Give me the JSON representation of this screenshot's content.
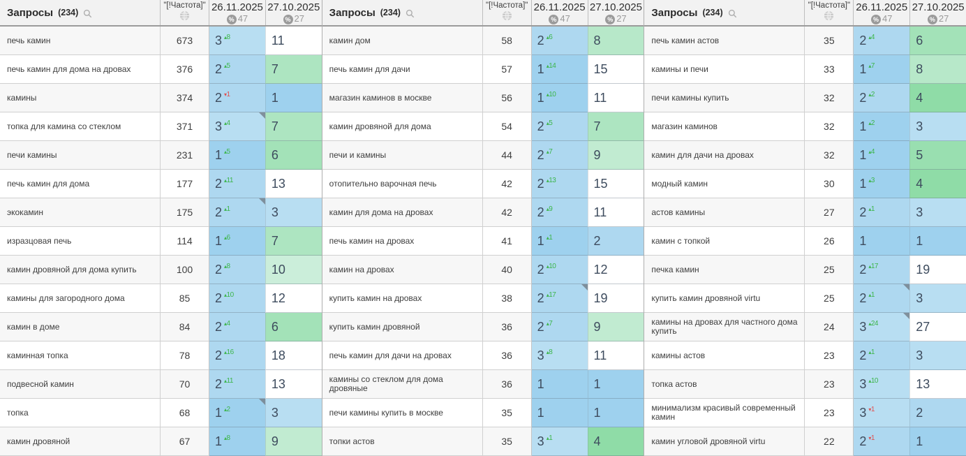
{
  "header": {
    "queries_label": "Запросы",
    "queries_count": "(234)",
    "freq_label": "\"[!Частота]\"",
    "col1": {
      "date": "26.11.2025",
      "percent": "47"
    },
    "col2": {
      "date": "27.10.2025",
      "percent": "27"
    }
  },
  "icons": {
    "search": "search-icon",
    "globe": "globe-icon",
    "percent_glyph": "%",
    "up_arrow_glyph": "▴",
    "down_arrow_glyph": "▾"
  },
  "colors": {
    "pos_top1_blue": "#9ed1ee",
    "pos_top2_blue": "#aed8f0",
    "pos_top3_blue": "#b8def2",
    "green_scale": {
      "4": "#8fdca7",
      "5": "#99dfb0",
      "6": "#a3e2b8",
      "7": "#ade5c1",
      "8": "#b7e8c9",
      "9": "#c1ebd1",
      "10": "#cbeeda"
    },
    "out_of_top10": "#ffffff",
    "change_up": "#3cb54a",
    "change_down": "#e04f4f"
  },
  "panels": [
    {
      "rows": [
        {
          "kw": "печь камин",
          "freq": "673",
          "p1": "3",
          "chg": "8",
          "dir": "up",
          "p2": "11",
          "note": false
        },
        {
          "kw": "печь камин для дома на дровах",
          "freq": "376",
          "p1": "2",
          "chg": "5",
          "dir": "up",
          "p2": "7",
          "note": false
        },
        {
          "kw": "камины",
          "freq": "374",
          "p1": "2",
          "chg": "1",
          "dir": "down",
          "p2": "1",
          "note": false
        },
        {
          "kw": "топка для камина со стеклом",
          "freq": "371",
          "p1": "3",
          "chg": "4",
          "dir": "up",
          "p2": "7",
          "note": true
        },
        {
          "kw": "печи камины",
          "freq": "231",
          "p1": "1",
          "chg": "5",
          "dir": "up",
          "p2": "6",
          "note": false
        },
        {
          "kw": "печь камин для дома",
          "freq": "177",
          "p1": "2",
          "chg": "11",
          "dir": "up",
          "p2": "13",
          "note": false
        },
        {
          "kw": "экокамин",
          "freq": "175",
          "p1": "2",
          "chg": "1",
          "dir": "up",
          "p2": "3",
          "note": true
        },
        {
          "kw": "изразцовая печь",
          "freq": "114",
          "p1": "1",
          "chg": "6",
          "dir": "up",
          "p2": "7",
          "note": false
        },
        {
          "kw": "камин дровяной для дома купить",
          "freq": "100",
          "p1": "2",
          "chg": "8",
          "dir": "up",
          "p2": "10",
          "note": false
        },
        {
          "kw": "камины для загородного дома",
          "freq": "85",
          "p1": "2",
          "chg": "10",
          "dir": "up",
          "p2": "12",
          "note": false
        },
        {
          "kw": "камин в доме",
          "freq": "84",
          "p1": "2",
          "chg": "4",
          "dir": "up",
          "p2": "6",
          "note": false
        },
        {
          "kw": "каминная топка",
          "freq": "78",
          "p1": "2",
          "chg": "16",
          "dir": "up",
          "p2": "18",
          "note": false
        },
        {
          "kw": "подвесной камин",
          "freq": "70",
          "p1": "2",
          "chg": "11",
          "dir": "up",
          "p2": "13",
          "note": false
        },
        {
          "kw": "топка",
          "freq": "68",
          "p1": "1",
          "chg": "2",
          "dir": "up",
          "p2": "3",
          "note": true
        },
        {
          "kw": "камин дровяной",
          "freq": "67",
          "p1": "1",
          "chg": "8",
          "dir": "up",
          "p2": "9",
          "note": false
        }
      ]
    },
    {
      "rows": [
        {
          "kw": "камин дом",
          "freq": "58",
          "p1": "2",
          "chg": "6",
          "dir": "up",
          "p2": "8",
          "note": false
        },
        {
          "kw": "печь камин для дачи",
          "freq": "57",
          "p1": "1",
          "chg": "14",
          "dir": "up",
          "p2": "15",
          "note": false
        },
        {
          "kw": "магазин каминов в москве",
          "freq": "56",
          "p1": "1",
          "chg": "10",
          "dir": "up",
          "p2": "11",
          "note": false
        },
        {
          "kw": "камин дровяной для дома",
          "freq": "54",
          "p1": "2",
          "chg": "5",
          "dir": "up",
          "p2": "7",
          "note": false
        },
        {
          "kw": "печи и камины",
          "freq": "44",
          "p1": "2",
          "chg": "7",
          "dir": "up",
          "p2": "9",
          "note": false
        },
        {
          "kw": "отопительно варочная печь",
          "freq": "42",
          "p1": "2",
          "chg": "13",
          "dir": "up",
          "p2": "15",
          "note": false
        },
        {
          "kw": "камин для дома на дровах",
          "freq": "42",
          "p1": "2",
          "chg": "9",
          "dir": "up",
          "p2": "11",
          "note": false
        },
        {
          "kw": "печь камин на дровах",
          "freq": "41",
          "p1": "1",
          "chg": "1",
          "dir": "up",
          "p2": "2",
          "note": false
        },
        {
          "kw": "камин на дровах",
          "freq": "40",
          "p1": "2",
          "chg": "10",
          "dir": "up",
          "p2": "12",
          "note": false
        },
        {
          "kw": "купить камин на дровах",
          "freq": "38",
          "p1": "2",
          "chg": "17",
          "dir": "up",
          "p2": "19",
          "note": true
        },
        {
          "kw": "купить камин дровяной",
          "freq": "36",
          "p1": "2",
          "chg": "7",
          "dir": "up",
          "p2": "9",
          "note": false
        },
        {
          "kw": "печь камин для дачи на дровах",
          "freq": "36",
          "p1": "3",
          "chg": "8",
          "dir": "up",
          "p2": "11",
          "note": false
        },
        {
          "kw": "камины со стеклом для дома дровяные",
          "freq": "36",
          "p1": "1",
          "chg": null,
          "dir": null,
          "p2": "1",
          "note": false
        },
        {
          "kw": "печи камины купить в москве",
          "freq": "35",
          "p1": "1",
          "chg": null,
          "dir": null,
          "p2": "1",
          "note": false
        },
        {
          "kw": "топки астов",
          "freq": "35",
          "p1": "3",
          "chg": "1",
          "dir": "up",
          "p2": "4",
          "note": false
        }
      ]
    },
    {
      "rows": [
        {
          "kw": "печь камин астов",
          "freq": "35",
          "p1": "2",
          "chg": "4",
          "dir": "up",
          "p2": "6",
          "note": false
        },
        {
          "kw": "камины и печи",
          "freq": "33",
          "p1": "1",
          "chg": "7",
          "dir": "up",
          "p2": "8",
          "note": false
        },
        {
          "kw": "печи камины купить",
          "freq": "32",
          "p1": "2",
          "chg": "2",
          "dir": "up",
          "p2": "4",
          "note": false
        },
        {
          "kw": "магазин каминов",
          "freq": "32",
          "p1": "1",
          "chg": "2",
          "dir": "up",
          "p2": "3",
          "note": false
        },
        {
          "kw": "камин для дачи на дровах",
          "freq": "32",
          "p1": "1",
          "chg": "4",
          "dir": "up",
          "p2": "5",
          "note": false
        },
        {
          "kw": "модный камин",
          "freq": "30",
          "p1": "1",
          "chg": "3",
          "dir": "up",
          "p2": "4",
          "note": false
        },
        {
          "kw": "астов камины",
          "freq": "27",
          "p1": "2",
          "chg": "1",
          "dir": "up",
          "p2": "3",
          "note": false
        },
        {
          "kw": "камин с топкой",
          "freq": "26",
          "p1": "1",
          "chg": null,
          "dir": null,
          "p2": "1",
          "note": false
        },
        {
          "kw": "печка камин",
          "freq": "25",
          "p1": "2",
          "chg": "17",
          "dir": "up",
          "p2": "19",
          "note": false
        },
        {
          "kw": "купить камин дровяной virtu",
          "freq": "25",
          "p1": "2",
          "chg": "1",
          "dir": "up",
          "p2": "3",
          "note": true
        },
        {
          "kw": "камины на дровах для частного дома купить",
          "freq": "24",
          "p1": "3",
          "chg": "24",
          "dir": "up",
          "p2": "27",
          "note": true
        },
        {
          "kw": "камины астов",
          "freq": "23",
          "p1": "2",
          "chg": "1",
          "dir": "up",
          "p2": "3",
          "note": false
        },
        {
          "kw": "топка астов",
          "freq": "23",
          "p1": "3",
          "chg": "10",
          "dir": "up",
          "p2": "13",
          "note": false
        },
        {
          "kw": "минимализм красивый современный камин",
          "freq": "23",
          "p1": "3",
          "chg": "1",
          "dir": "down",
          "p2": "2",
          "note": false
        },
        {
          "kw": "камин угловой дровяной virtu",
          "freq": "22",
          "p1": "2",
          "chg": "1",
          "dir": "down",
          "p2": "1",
          "note": false
        }
      ]
    }
  ]
}
